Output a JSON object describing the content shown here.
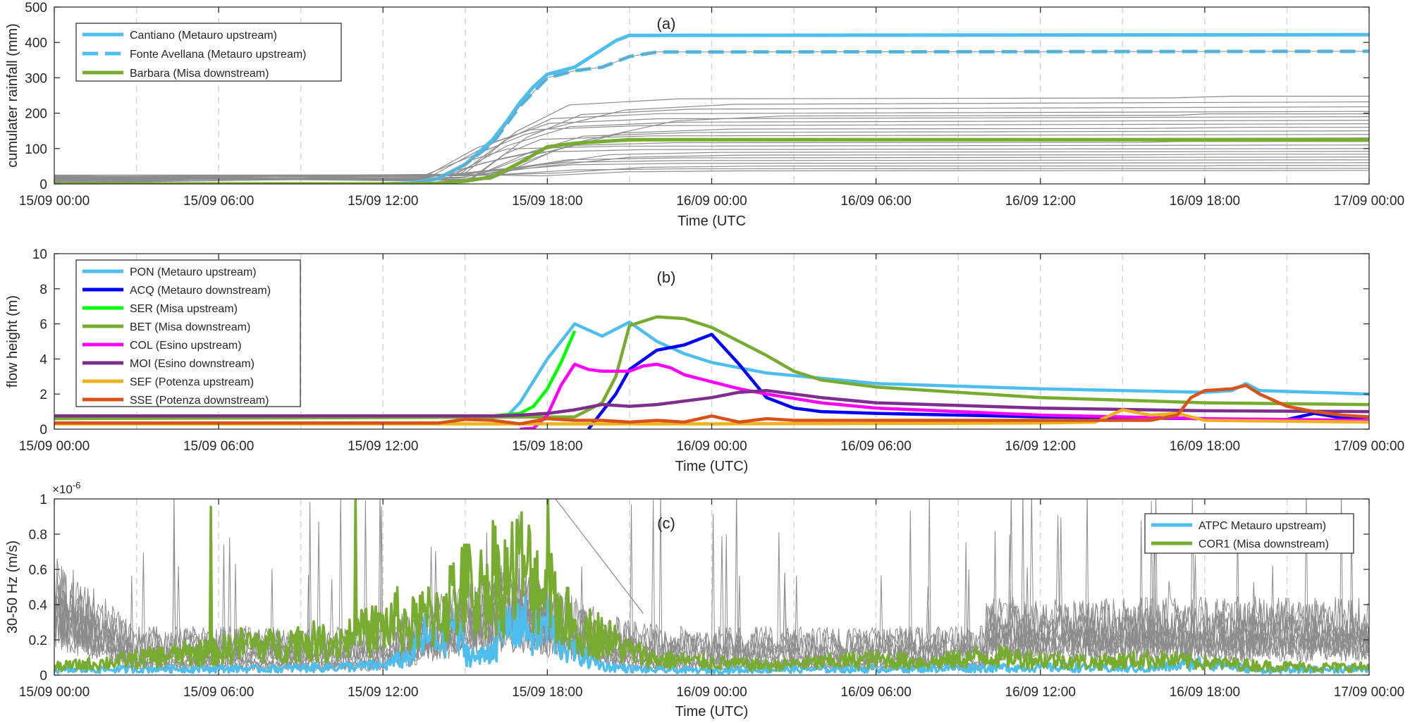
{
  "chart_data": [
    {
      "type": "line",
      "title": "(a)",
      "xlabel": "Time (UTC",
      "ylabel": "cumulater rainfall (mm)",
      "xlim": [
        0,
        48
      ],
      "ylim": [
        0,
        500
      ],
      "yticks": [
        0,
        100,
        200,
        300,
        400,
        500
      ],
      "xtick_labels": [
        "15/09 00:00",
        "15/09 06:00",
        "15/09 12:00",
        "15/09 18:00",
        "16/09 00:00",
        "16/09 06:00",
        "16/09 12:00",
        "16/09 18:00",
        "17/09 00:00"
      ],
      "series": [
        {
          "name": "Cantiano (Metauro upstream)",
          "color": "#4DBEEE",
          "dash": "solid",
          "x": [
            0,
            12,
            13,
            14,
            15,
            16,
            16.5,
            17,
            17.5,
            18,
            19,
            20,
            20.5,
            21,
            48
          ],
          "y": [
            0,
            0,
            2,
            15,
            55,
            125,
            175,
            230,
            275,
            310,
            330,
            380,
            405,
            420,
            422
          ]
        },
        {
          "name": "Fonte Avellana (Metauro upstream)",
          "color": "#4DBEEE",
          "dash": "dashed",
          "x": [
            0,
            12,
            13,
            14,
            15,
            16,
            17,
            18,
            19,
            20,
            21,
            22,
            48
          ],
          "y": [
            0,
            0,
            2,
            15,
            55,
            115,
            220,
            300,
            320,
            330,
            360,
            373,
            375
          ]
        },
        {
          "name": "Barbara (Misa downstream)",
          "color": "#77AC30",
          "dash": "solid",
          "x": [
            0,
            13,
            14,
            15,
            16,
            17,
            18,
            19,
            20,
            21,
            48
          ],
          "y": [
            0,
            0,
            2,
            8,
            20,
            60,
            105,
            115,
            120,
            125,
            125
          ]
        }
      ]
    },
    {
      "type": "line",
      "title": "(b)",
      "xlabel": "Time (UTC)",
      "ylabel": "flow height (m)",
      "xlim": [
        0,
        48
      ],
      "ylim": [
        0,
        10
      ],
      "yticks": [
        0,
        2,
        4,
        6,
        8,
        10
      ],
      "xtick_labels": [
        "15/09 00:00",
        "15/09 06:00",
        "15/09 12:00",
        "15/09 18:00",
        "16/09 00:00",
        "16/09 06:00",
        "16/09 12:00",
        "16/09 18:00",
        "17/09 00:00"
      ],
      "series": [
        {
          "name": "PON (Metauro upstream)",
          "color": "#4DBEEE",
          "x": [
            0,
            16.5,
            17,
            18,
            19,
            20,
            21,
            22,
            23,
            24,
            26,
            28,
            30,
            36,
            42,
            43,
            43.5,
            44,
            46,
            48
          ],
          "y": [
            0.7,
            0.7,
            1.5,
            4.0,
            6.0,
            5.3,
            6.1,
            5.0,
            4.3,
            3.8,
            3.2,
            2.9,
            2.6,
            2.3,
            2.1,
            2.2,
            2.6,
            2.2,
            2.1,
            2.0
          ]
        },
        {
          "name": "ACQ (Metauro downstream)",
          "color": "#0000FF",
          "x": [
            19.5,
            20,
            20.5,
            21,
            22,
            23,
            24,
            25,
            26,
            27,
            28,
            30,
            36,
            42,
            44,
            45,
            46,
            47,
            48
          ],
          "y": [
            0,
            1.0,
            2.0,
            3.4,
            4.5,
            4.8,
            5.4,
            3.7,
            1.8,
            1.2,
            1.0,
            0.9,
            0.7,
            0.6,
            0.5,
            0.55,
            0.9,
            0.65,
            0.7
          ]
        },
        {
          "name": "SER (Misa upstream)",
          "color": "#00FF00",
          "x": [
            0,
            16,
            17,
            17.5,
            18,
            18.5,
            19
          ],
          "y": [
            0.75,
            0.75,
            0.9,
            1.3,
            2.3,
            3.8,
            5.6
          ]
        },
        {
          "name": "BET (Misa downstream)",
          "color": "#77AC30",
          "x": [
            0,
            19,
            20,
            20.5,
            21,
            22,
            23,
            24,
            25,
            26,
            27,
            28,
            30,
            36,
            42,
            48
          ],
          "y": [
            0.6,
            0.7,
            1.5,
            3.0,
            5.9,
            6.4,
            6.3,
            5.8,
            5.0,
            4.2,
            3.3,
            2.8,
            2.4,
            1.8,
            1.5,
            1.4
          ]
        },
        {
          "name": "COL (Esino upstream)",
          "color": "#FF00FF",
          "x": [
            17,
            17.5,
            18,
            18.5,
            19,
            19.5,
            20,
            21,
            21.5,
            22,
            22.5,
            23,
            24,
            25,
            26,
            28,
            30,
            36,
            42,
            48
          ],
          "y": [
            0,
            0.05,
            0.8,
            2.5,
            3.7,
            3.4,
            3.3,
            3.3,
            3.6,
            3.7,
            3.5,
            3.1,
            2.7,
            2.3,
            2.0,
            1.5,
            1.2,
            0.8,
            0.6,
            0.5
          ]
        },
        {
          "name": "MOI (Esino downstream)",
          "color": "#7E2F8E",
          "x": [
            0,
            16,
            17,
            18,
            19,
            20,
            21,
            22,
            23,
            24,
            25,
            26,
            27,
            28,
            30,
            36,
            42,
            48
          ],
          "y": [
            0.75,
            0.75,
            0.8,
            0.9,
            1.1,
            1.4,
            1.3,
            1.4,
            1.6,
            1.8,
            2.1,
            2.2,
            2.0,
            1.8,
            1.5,
            1.2,
            1.05,
            1.0
          ]
        },
        {
          "name": "SEF (Potenza upstream)",
          "color": "#EDB120",
          "x": [
            0,
            24,
            36,
            38,
            39,
            40,
            41,
            42,
            48
          ],
          "y": [
            0.3,
            0.3,
            0.35,
            0.4,
            1.1,
            0.8,
            0.9,
            0.5,
            0.4
          ]
        },
        {
          "name": "SSE (Potenza downstream)",
          "color": "#D95319",
          "x": [
            0,
            14,
            15,
            16,
            17,
            18,
            19,
            20,
            21,
            22,
            23,
            24,
            25,
            26,
            27,
            30,
            36,
            40,
            41,
            41.5,
            42,
            43,
            43.5,
            44,
            45,
            46,
            47,
            48
          ],
          "y": [
            0.35,
            0.35,
            0.55,
            0.5,
            0.3,
            0.6,
            0.5,
            0.5,
            0.4,
            0.5,
            0.4,
            0.75,
            0.4,
            0.6,
            0.5,
            0.5,
            0.5,
            0.5,
            0.8,
            1.8,
            2.2,
            2.3,
            2.5,
            2.0,
            1.3,
            1.0,
            0.8,
            0.7
          ]
        }
      ]
    },
    {
      "type": "line",
      "title": "(c)",
      "xlabel": "Time (UTC)",
      "ylabel": "30-50 Hz (m/s)",
      "y_multiplier": "×10",
      "y_exponent": "-6",
      "xlim": [
        0,
        48
      ],
      "ylim": [
        0,
        1
      ],
      "yticks": [
        0,
        0.2,
        0.4,
        0.6,
        0.8,
        1
      ],
      "xtick_labels": [
        "15/09 00:00",
        "15/09 06:00",
        "15/09 12:00",
        "15/09 18:00",
        "16/09 00:00",
        "16/09 06:00",
        "16/09 12:00",
        "16/09 18:00",
        "17/09 00:00"
      ],
      "series": [
        {
          "name": "ATPC Metauro upstream)",
          "color": "#4DBEEE",
          "x": [
            0,
            4,
            8,
            10,
            12,
            13,
            13.5,
            14,
            14.5,
            15,
            15.5,
            16,
            16.5,
            17,
            17.5,
            18,
            18.5,
            19,
            19.5,
            20,
            21,
            22,
            24,
            30,
            36,
            40,
            42,
            44,
            48
          ],
          "y": [
            0.03,
            0.04,
            0.04,
            0.05,
            0.06,
            0.12,
            0.25,
            0.2,
            0.35,
            0.15,
            0.1,
            0.18,
            0.3,
            0.35,
            0.25,
            0.32,
            0.2,
            0.15,
            0.1,
            0.06,
            0.04,
            0.03,
            0.03,
            0.04,
            0.05,
            0.04,
            0.08,
            0.03,
            0.04
          ]
        },
        {
          "name": "COR1 (Misa downstream)",
          "color": "#77AC30",
          "x": [
            0,
            2,
            4,
            6,
            7,
            8,
            9,
            10,
            11,
            12,
            12.5,
            13,
            14,
            15,
            15.5,
            16,
            16.5,
            17,
            17.5,
            18,
            18.5,
            19,
            20,
            21,
            22,
            24,
            26,
            28,
            30,
            32,
            34,
            36,
            38,
            40,
            42,
            44,
            46,
            48
          ],
          "y": [
            0.05,
            0.08,
            0.12,
            0.15,
            0.2,
            0.18,
            0.22,
            0.2,
            0.25,
            0.3,
            0.35,
            0.3,
            0.4,
            0.55,
            0.5,
            0.65,
            0.6,
            0.7,
            0.6,
            0.55,
            0.4,
            0.3,
            0.25,
            0.15,
            0.1,
            0.08,
            0.06,
            0.08,
            0.1,
            0.08,
            0.12,
            0.1,
            0.08,
            0.1,
            0.08,
            0.06,
            0.05,
            0.05
          ]
        }
      ]
    }
  ]
}
